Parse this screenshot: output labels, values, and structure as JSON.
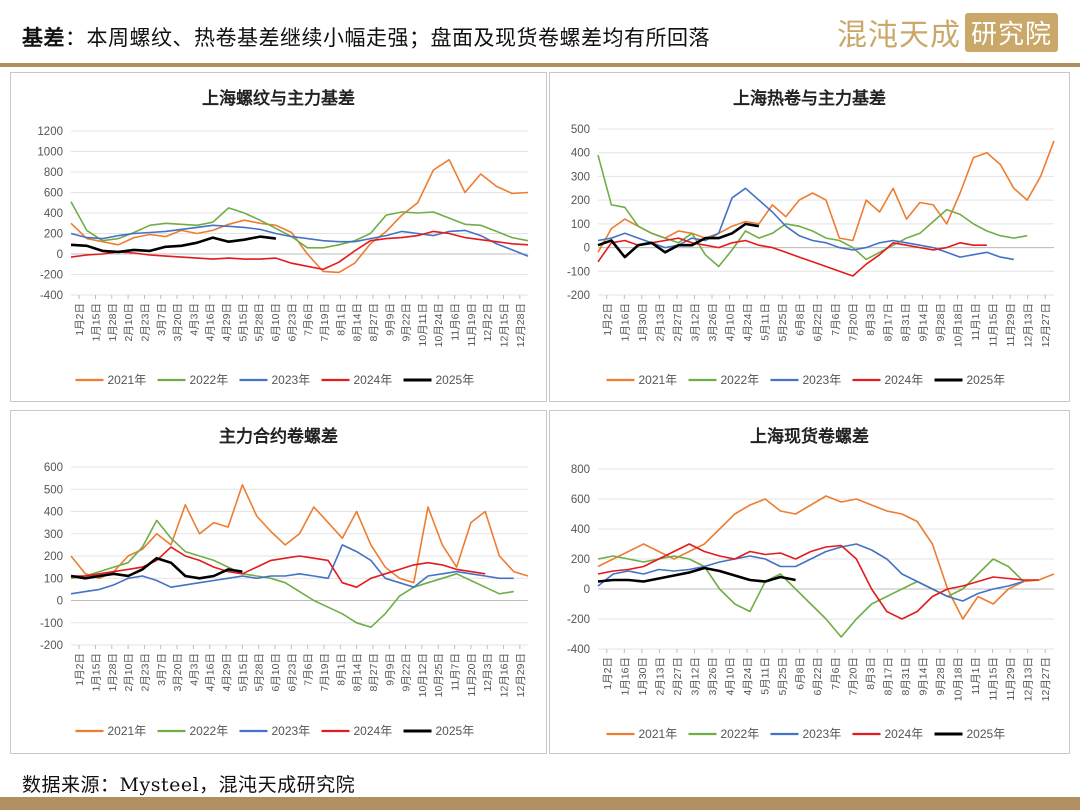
{
  "header": {
    "title_bold": "基差",
    "title_rest": "：本周螺纹、热卷基差继续小幅走强；盘面及现货卷螺差均有所回落",
    "logo_text": "混沌天成",
    "logo_badge": "研究院"
  },
  "source": "数据来源：Mysteel，混沌天成研究院",
  "colors": {
    "2021年": "#ED7D31",
    "2022年": "#70AD47",
    "2023年": "#4472C4",
    "2024年": "#E41A1C",
    "2025年": "#000000",
    "rule": "#b09060",
    "logo": "#c9a86a"
  },
  "legend_labels": [
    "2021年",
    "2022年",
    "2023年",
    "2024年",
    "2025年"
  ],
  "chart_data": [
    {
      "type": "line",
      "title": "上海螺纹与主力基差",
      "ylim": [
        -400,
        1200
      ],
      "yticks": [
        -400,
        -200,
        0,
        200,
        400,
        600,
        800,
        1000,
        1200
      ],
      "x_ticks": [
        "1月2日",
        "1月15日",
        "1月28日",
        "2月10日",
        "2月23日",
        "3月7日",
        "3月20日",
        "4月3日",
        "4月16日",
        "4月29日",
        "5月15日",
        "5月28日",
        "6月10日",
        "6月23日",
        "7月6日",
        "7月19日",
        "8月1日",
        "8月14日",
        "8月27日",
        "9月9日",
        "9月22日",
        "10月11日",
        "10月24日",
        "11月6日",
        "11月19日",
        "12月2日",
        "12月15日",
        "12月28日"
      ],
      "series": [
        {
          "name": "2021年",
          "values": [
            300,
            150,
            120,
            90,
            160,
            190,
            170,
            230,
            200,
            230,
            290,
            330,
            300,
            280,
            210,
            0,
            -170,
            -180,
            -90,
            100,
            220,
            380,
            500,
            820,
            920,
            600,
            780,
            660,
            590,
            600
          ]
        },
        {
          "name": "2022年",
          "values": [
            510,
            230,
            130,
            150,
            210,
            280,
            300,
            290,
            280,
            310,
            450,
            400,
            330,
            250,
            170,
            60,
            60,
            90,
            130,
            200,
            380,
            410,
            400,
            410,
            350,
            290,
            280,
            220,
            160,
            130
          ]
        },
        {
          "name": "2023年",
          "values": [
            200,
            160,
            150,
            180,
            200,
            210,
            220,
            240,
            260,
            280,
            270,
            260,
            240,
            200,
            170,
            150,
            130,
            120,
            120,
            150,
            180,
            220,
            200,
            180,
            220,
            230,
            180,
            100,
            40,
            -20
          ]
        },
        {
          "name": "2024年",
          "values": [
            -30,
            -10,
            0,
            20,
            10,
            -10,
            -20,
            -30,
            -40,
            -50,
            -40,
            -50,
            -50,
            -40,
            -90,
            -120,
            -150,
            -80,
            30,
            130,
            150,
            160,
            180,
            220,
            200,
            160,
            140,
            120,
            100,
            90
          ]
        },
        {
          "name": "2025年",
          "values": [
            90,
            80,
            30,
            20,
            40,
            30,
            70,
            80,
            110,
            160,
            120,
            140,
            170,
            150
          ]
        }
      ]
    },
    {
      "type": "line",
      "title": "上海热卷与主力基差",
      "ylim": [
        -200,
        500
      ],
      "yticks": [
        -200,
        -100,
        0,
        100,
        200,
        300,
        400,
        500
      ],
      "x_ticks": [
        "1月2日",
        "1月16日",
        "1月30日",
        "2月13日",
        "2月27日",
        "3月12日",
        "3月26日",
        "4月10日",
        "4月24日",
        "5月11日",
        "5月25日",
        "6月8日",
        "6月22日",
        "7月6日",
        "7月20日",
        "8月3日",
        "8月17日",
        "8月31日",
        "9月14日",
        "9月28日",
        "10月18日",
        "11月1日",
        "11月15日",
        "11月29日",
        "12月13日",
        "12月27日"
      ],
      "series": [
        {
          "name": "2021年",
          "values": [
            -20,
            80,
            120,
            90,
            60,
            40,
            70,
            60,
            40,
            60,
            90,
            110,
            100,
            180,
            130,
            200,
            230,
            200,
            40,
            30,
            200,
            150,
            250,
            120,
            190,
            180,
            100,
            230,
            380,
            400,
            350,
            250,
            200,
            300,
            450
          ]
        },
        {
          "name": "2022年",
          "values": [
            390,
            180,
            170,
            90,
            60,
            40,
            20,
            60,
            -30,
            -80,
            -10,
            70,
            40,
            60,
            100,
            90,
            70,
            40,
            30,
            0,
            -50,
            -20,
            10,
            40,
            60,
            110,
            160,
            140,
            100,
            70,
            50,
            40,
            50
          ]
        },
        {
          "name": "2023年",
          "values": [
            30,
            40,
            60,
            40,
            20,
            0,
            10,
            40,
            30,
            60,
            210,
            250,
            200,
            150,
            90,
            50,
            30,
            20,
            0,
            -10,
            0,
            20,
            30,
            20,
            10,
            0,
            -20,
            -40,
            -30,
            -20,
            -40,
            -50
          ]
        },
        {
          "name": "2024年",
          "values": [
            -60,
            20,
            30,
            10,
            20,
            30,
            40,
            20,
            10,
            0,
            20,
            30,
            10,
            0,
            -20,
            -40,
            -60,
            -80,
            -100,
            -120,
            -70,
            -30,
            20,
            10,
            0,
            -10,
            0,
            20,
            10,
            10
          ]
        },
        {
          "name": "2025年",
          "values": [
            10,
            30,
            -40,
            10,
            20,
            -20,
            10,
            10,
            40,
            40,
            60,
            100,
            90
          ]
        }
      ]
    },
    {
      "type": "line",
      "title": "主力合约卷螺差",
      "ylim": [
        -200,
        600
      ],
      "yticks": [
        -200,
        -100,
        0,
        100,
        200,
        300,
        400,
        500,
        600
      ],
      "x_ticks": [
        "1月2日",
        "1月15日",
        "1月28日",
        "2月10日",
        "2月23日",
        "3月7日",
        "3月20日",
        "4月3日",
        "4月16日",
        "4月29日",
        "5月15日",
        "5月28日",
        "6月10日",
        "6月23日",
        "7月6日",
        "7月19日",
        "8月1日",
        "8月14日",
        "8月27日",
        "9月9日",
        "9月22日",
        "10月12日",
        "10月25日",
        "11月7日",
        "11月20日",
        "12月3日",
        "12月16日",
        "12月29日"
      ],
      "series": [
        {
          "name": "2021年",
          "values": [
            200,
            120,
            100,
            130,
            200,
            230,
            300,
            250,
            430,
            300,
            350,
            330,
            520,
            380,
            310,
            250,
            300,
            420,
            350,
            280,
            400,
            250,
            150,
            100,
            80,
            420,
            250,
            150,
            350,
            400,
            200,
            130,
            110
          ]
        },
        {
          "name": "2022年",
          "values": [
            100,
            110,
            130,
            150,
            170,
            240,
            360,
            280,
            220,
            200,
            180,
            150,
            120,
            110,
            100,
            80,
            40,
            0,
            -30,
            -60,
            -100,
            -120,
            -60,
            20,
            60,
            80,
            100,
            120,
            90,
            60,
            30,
            40
          ]
        },
        {
          "name": "2023年",
          "values": [
            30,
            40,
            50,
            70,
            100,
            110,
            90,
            60,
            70,
            80,
            90,
            100,
            110,
            100,
            110,
            110,
            120,
            110,
            100,
            250,
            220,
            180,
            100,
            80,
            60,
            110,
            120,
            130,
            120,
            110,
            100,
            100
          ]
        },
        {
          "name": "2024年",
          "values": [
            110,
            110,
            120,
            130,
            140,
            150,
            180,
            240,
            200,
            180,
            150,
            130,
            120,
            150,
            180,
            190,
            200,
            190,
            180,
            80,
            60,
            100,
            120,
            140,
            160,
            170,
            160,
            140,
            130,
            120
          ]
        },
        {
          "name": "2025年",
          "values": [
            110,
            100,
            110,
            120,
            110,
            140,
            190,
            170,
            110,
            100,
            110,
            140,
            130
          ]
        }
      ]
    },
    {
      "type": "line",
      "title": "上海现货卷螺差",
      "ylim": [
        -400,
        800
      ],
      "yticks": [
        -400,
        -200,
        0,
        200,
        400,
        600,
        800
      ],
      "x_ticks": [
        "1月2日",
        "1月16日",
        "1月30日",
        "2月13日",
        "2月27日",
        "3月12日",
        "3月26日",
        "4月10日",
        "4月24日",
        "5月11日",
        "5月25日",
        "6月8日",
        "6月22日",
        "7月6日",
        "7月20日",
        "8月3日",
        "8月17日",
        "8月31日",
        "9月14日",
        "9月28日",
        "10月18日",
        "11月1日",
        "11月15日",
        "11月29日",
        "12月13日",
        "12月27日"
      ],
      "series": [
        {
          "name": "2021年",
          "values": [
            150,
            200,
            250,
            300,
            250,
            200,
            250,
            300,
            400,
            500,
            560,
            600,
            520,
            500,
            560,
            620,
            580,
            600,
            560,
            520,
            500,
            450,
            300,
            0,
            -200,
            -50,
            -100,
            0,
            50,
            60,
            100
          ]
        },
        {
          "name": "2022年",
          "values": [
            200,
            220,
            200,
            180,
            200,
            220,
            200,
            150,
            0,
            -100,
            -150,
            50,
            100,
            0,
            -100,
            -200,
            -320,
            -200,
            -100,
            -50,
            0,
            50,
            0,
            -50,
            0,
            100,
            200,
            150,
            50
          ]
        },
        {
          "name": "2023年",
          "values": [
            20,
            100,
            120,
            100,
            130,
            120,
            130,
            150,
            180,
            200,
            220,
            200,
            150,
            150,
            200,
            250,
            280,
            300,
            260,
            200,
            100,
            50,
            0,
            -50,
            -80,
            -30,
            0,
            20,
            50
          ]
        },
        {
          "name": "2024年",
          "values": [
            100,
            120,
            130,
            150,
            200,
            250,
            300,
            250,
            220,
            200,
            250,
            230,
            240,
            200,
            250,
            280,
            290,
            200,
            0,
            -150,
            -200,
            -150,
            -50,
            0,
            20,
            50,
            80,
            70,
            60,
            60
          ]
        },
        {
          "name": "2025年",
          "values": [
            50,
            60,
            60,
            50,
            70,
            90,
            110,
            140,
            120,
            90,
            60,
            50,
            80,
            60
          ]
        }
      ]
    }
  ]
}
